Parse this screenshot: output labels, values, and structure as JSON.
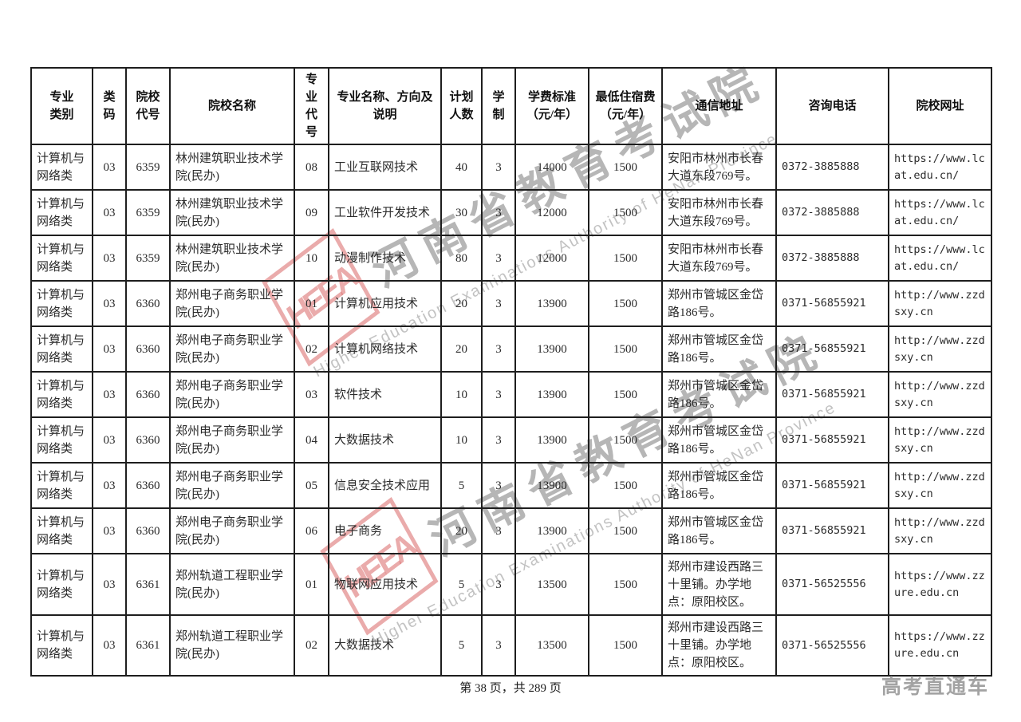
{
  "watermark": {
    "logo_text": "HEEA",
    "cn_text": "河南省教育考试院",
    "en_text": "Higher Education Examinations Authority of HeNan Province",
    "accent_red": "#d86868",
    "text_gray": "#b0b0b0"
  },
  "table": {
    "columns": [
      "专业\n类别",
      "类码",
      "院校\n代号",
      "院校名称",
      "专业\n代号",
      "专业名称、方向及\n说明",
      "计划\n人数",
      "学制",
      "学费标准\n（元/年）",
      "最低住宿费\n（元/年）",
      "通信地址",
      "咨询电话",
      "院校网址"
    ],
    "rows": [
      [
        "计算机与网络类",
        "03",
        "6359",
        "林州建筑职业技术学院(民办)",
        "08",
        "工业互联网技术",
        "40",
        "3",
        "14000",
        "1500",
        "安阳市林州市长春大道东段769号。",
        "0372-3885888",
        "https://www.lcat.edu.cn/"
      ],
      [
        "计算机与网络类",
        "03",
        "6359",
        "林州建筑职业技术学院(民办)",
        "09",
        "工业软件开发技术",
        "30",
        "3",
        "12000",
        "1500",
        "安阳市林州市长春大道东段769号。",
        "0372-3885888",
        "https://www.lcat.edu.cn/"
      ],
      [
        "计算机与网络类",
        "03",
        "6359",
        "林州建筑职业技术学院(民办)",
        "10",
        "动漫制作技术",
        "80",
        "3",
        "12000",
        "1500",
        "安阳市林州市长春大道东段769号。",
        "0372-3885888",
        "https://www.lcat.edu.cn/"
      ],
      [
        "计算机与网络类",
        "03",
        "6360",
        "郑州电子商务职业学院(民办)",
        "01",
        "计算机应用技术",
        "20",
        "3",
        "13900",
        "1500",
        "郑州市管城区金岱路186号。",
        "0371-56855921",
        "http://www.zzdsxy.cn"
      ],
      [
        "计算机与网络类",
        "03",
        "6360",
        "郑州电子商务职业学院(民办)",
        "02",
        "计算机网络技术",
        "20",
        "3",
        "13900",
        "1500",
        "郑州市管城区金岱路186号。",
        "0371-56855921",
        "http://www.zzdsxy.cn"
      ],
      [
        "计算机与网络类",
        "03",
        "6360",
        "郑州电子商务职业学院(民办)",
        "03",
        "软件技术",
        "10",
        "3",
        "13900",
        "1500",
        "郑州市管城区金岱路186号。",
        "0371-56855921",
        "http://www.zzdsxy.cn"
      ],
      [
        "计算机与网络类",
        "03",
        "6360",
        "郑州电子商务职业学院(民办)",
        "04",
        "大数据技术",
        "10",
        "3",
        "13900",
        "1500",
        "郑州市管城区金岱路186号。",
        "0371-56855921",
        "http://www.zzdsxy.cn"
      ],
      [
        "计算机与网络类",
        "03",
        "6360",
        "郑州电子商务职业学院(民办)",
        "05",
        "信息安全技术应用",
        "5",
        "3",
        "13900",
        "1500",
        "郑州市管城区金岱路186号。",
        "0371-56855921",
        "http://www.zzdsxy.cn"
      ],
      [
        "计算机与网络类",
        "03",
        "6360",
        "郑州电子商务职业学院(民办)",
        "06",
        "电子商务",
        "20",
        "3",
        "13900",
        "1500",
        "郑州市管城区金岱路186号。",
        "0371-56855921",
        "http://www.zzdsxy.cn"
      ],
      [
        "计算机与网络类",
        "03",
        "6361",
        "郑州轨道工程职业学院(民办)",
        "01",
        "物联网应用技术",
        "5",
        "3",
        "13500",
        "1500",
        "郑州市建设西路三十里铺。办学地点：原阳校区。",
        "0371-56525556",
        "https://www.zzure.edu.cn"
      ],
      [
        "计算机与网络类",
        "03",
        "6361",
        "郑州轨道工程职业学院(民办)",
        "02",
        "大数据技术",
        "5",
        "3",
        "13500",
        "1500",
        "郑州市建设西路三十里铺。办学地点：原阳校区。",
        "0371-56525556",
        "https://www.zzure.edu.cn"
      ]
    ]
  },
  "footer": {
    "page_info": "第 38 页，共 289 页",
    "brand": "高考直通车"
  }
}
